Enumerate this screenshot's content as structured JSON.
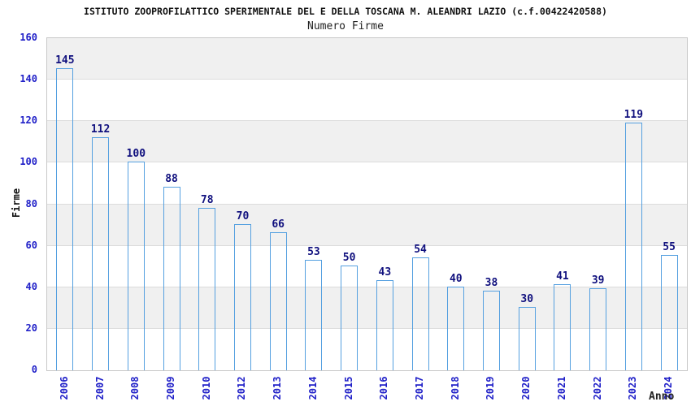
{
  "header": {
    "title": "ISTITUTO ZOOPROFILATTICO SPERIMENTALE DEL E DELLA TOSCANA M. ALEANDRI LAZIO (c.f.00422420588)",
    "subtitle": "Numero Firme"
  },
  "chart_data": {
    "type": "bar",
    "title": "Numero Firme",
    "categories": [
      "2006",
      "2007",
      "2008",
      "2009",
      "2010",
      "2012",
      "2013",
      "2014",
      "2015",
      "2016",
      "2017",
      "2018",
      "2019",
      "2020",
      "2021",
      "2022",
      "2023",
      "2024"
    ],
    "values": [
      145,
      112,
      100,
      88,
      78,
      70,
      66,
      53,
      50,
      43,
      54,
      40,
      38,
      30,
      41,
      39,
      119,
      55
    ],
    "xlabel": "Anno",
    "ylabel": "Firme",
    "ylim": [
      0,
      160
    ],
    "yticks": [
      0,
      20,
      40,
      60,
      80,
      100,
      120,
      140,
      160
    ],
    "grid": true,
    "legend_position": "none",
    "band_colors": {
      "odd": "#f0f0f0",
      "even": "#ffffff"
    },
    "colors": {
      "bar_edge_dark": "#151572",
      "bar_center_light": "#aab2dc",
      "bar_border": "#55a0e0",
      "value_label": "#10107e",
      "tick_label": "#2020c8",
      "gridline": "#dcdcdc",
      "plot_border": "#c8c8c8"
    }
  }
}
